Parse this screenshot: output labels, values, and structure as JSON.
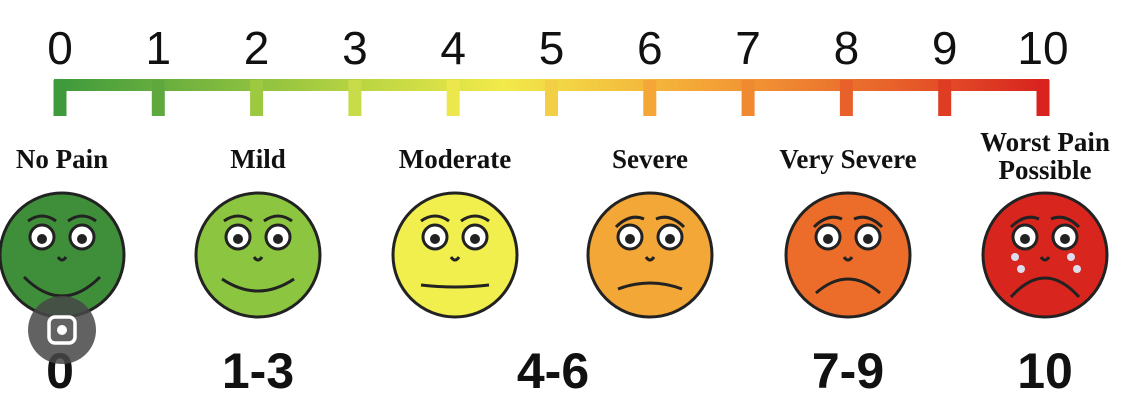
{
  "scale": {
    "ticks": [
      0,
      1,
      2,
      3,
      4,
      5,
      6,
      7,
      8,
      9,
      10
    ]
  },
  "faces": [
    {
      "label": "No Pain"
    },
    {
      "label": "Mild"
    },
    {
      "label": "Moderate"
    },
    {
      "label": "Severe"
    },
    {
      "label": "Very Severe"
    },
    {
      "label": "Worst Pain Possible"
    }
  ],
  "ranges": [
    "0",
    "1-3",
    "4-6",
    "7-9",
    "10"
  ]
}
